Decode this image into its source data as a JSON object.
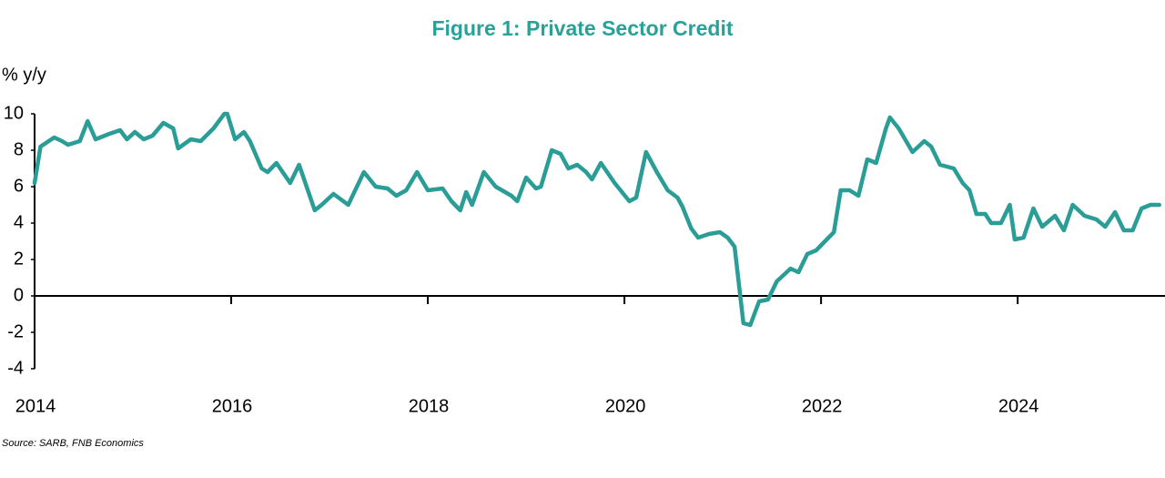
{
  "chart_data": {
    "type": "line",
    "title": "Figure 1: Private Sector Credit",
    "y_label": "% y/y",
    "source": "Source: SARB, FNB Economics",
    "xlim": [
      2014,
      2025.48
    ],
    "xticks": [
      2014,
      2016,
      2018,
      2020,
      2022,
      2024
    ],
    "ylim": [
      -4,
      10
    ],
    "yticks": [
      -4,
      -2,
      0,
      2,
      4,
      6,
      8,
      10
    ],
    "series": [
      {
        "name": "Private sector credit",
        "color": "#2a9d96",
        "x": [
          2014.0,
          2014.06,
          2014.2,
          2014.28,
          2014.34,
          2014.46,
          2014.54,
          2014.62,
          2014.76,
          2014.87,
          2014.94,
          2015.02,
          2015.11,
          2015.2,
          2015.31,
          2015.41,
          2015.46,
          2015.59,
          2015.69,
          2015.82,
          2015.93,
          2015.96,
          2016.04,
          2016.13,
          2016.19,
          2016.31,
          2016.37,
          2016.46,
          2016.6,
          2016.69,
          2016.85,
          2016.92,
          2017.04,
          2017.19,
          2017.35,
          2017.47,
          2017.59,
          2017.68,
          2017.78,
          2017.89,
          2018.0,
          2018.15,
          2018.24,
          2018.33,
          2018.39,
          2018.45,
          2018.57,
          2018.69,
          2018.85,
          2018.91,
          2019.0,
          2019.1,
          2019.15,
          2019.26,
          2019.35,
          2019.43,
          2019.52,
          2019.61,
          2019.67,
          2019.76,
          2019.9,
          2020.05,
          2020.12,
          2020.22,
          2020.33,
          2020.44,
          2020.54,
          2020.59,
          2020.68,
          2020.75,
          2020.86,
          2020.97,
          2021.05,
          2021.12,
          2021.21,
          2021.28,
          2021.37,
          2021.46,
          2021.55,
          2021.69,
          2021.77,
          2021.86,
          2021.95,
          2022.04,
          2022.13,
          2022.2,
          2022.29,
          2022.38,
          2022.47,
          2022.56,
          2022.66,
          2022.7,
          2022.79,
          2022.93,
          2023.05,
          2023.12,
          2023.21,
          2023.35,
          2023.44,
          2023.51,
          2023.58,
          2023.67,
          2023.73,
          2023.83,
          2023.92,
          2023.97,
          2024.06,
          2024.16,
          2024.25,
          2024.38,
          2024.47,
          2024.56,
          2024.68,
          2024.8,
          2024.89,
          2024.99,
          2025.08,
          2025.17,
          2025.26,
          2025.35,
          2025.44
        ],
        "values": [
          6.2,
          8.2,
          8.7,
          8.5,
          8.3,
          8.5,
          9.6,
          8.6,
          8.9,
          9.1,
          8.6,
          9.0,
          8.6,
          8.8,
          9.5,
          9.2,
          8.1,
          8.6,
          8.5,
          9.2,
          10.0,
          10.0,
          8.6,
          9.0,
          8.5,
          7.0,
          6.8,
          7.3,
          6.2,
          7.2,
          4.7,
          5.0,
          5.6,
          5.0,
          6.8,
          6.0,
          5.9,
          5.5,
          5.8,
          6.8,
          5.8,
          5.9,
          5.2,
          4.7,
          5.7,
          5.0,
          6.8,
          6.0,
          5.5,
          5.2,
          6.5,
          5.9,
          6.0,
          8.0,
          7.8,
          7.0,
          7.2,
          6.8,
          6.4,
          7.3,
          6.2,
          5.2,
          5.4,
          7.9,
          6.8,
          5.8,
          5.4,
          4.9,
          3.7,
          3.2,
          3.4,
          3.5,
          3.2,
          2.7,
          -1.5,
          -1.6,
          -0.3,
          -0.2,
          0.8,
          1.5,
          1.3,
          2.3,
          2.5,
          3.0,
          3.5,
          5.8,
          5.8,
          5.5,
          7.5,
          7.3,
          9.2,
          9.8,
          9.2,
          7.9,
          8.5,
          8.2,
          7.2,
          7.0,
          6.2,
          5.8,
          4.5,
          4.5,
          4.0,
          4.0,
          5.0,
          3.1,
          3.2,
          4.8,
          3.8,
          4.4,
          3.6,
          5.0,
          4.4,
          4.2,
          3.8,
          4.6,
          3.6,
          3.6,
          4.8,
          5.0,
          5.0
        ]
      }
    ]
  }
}
